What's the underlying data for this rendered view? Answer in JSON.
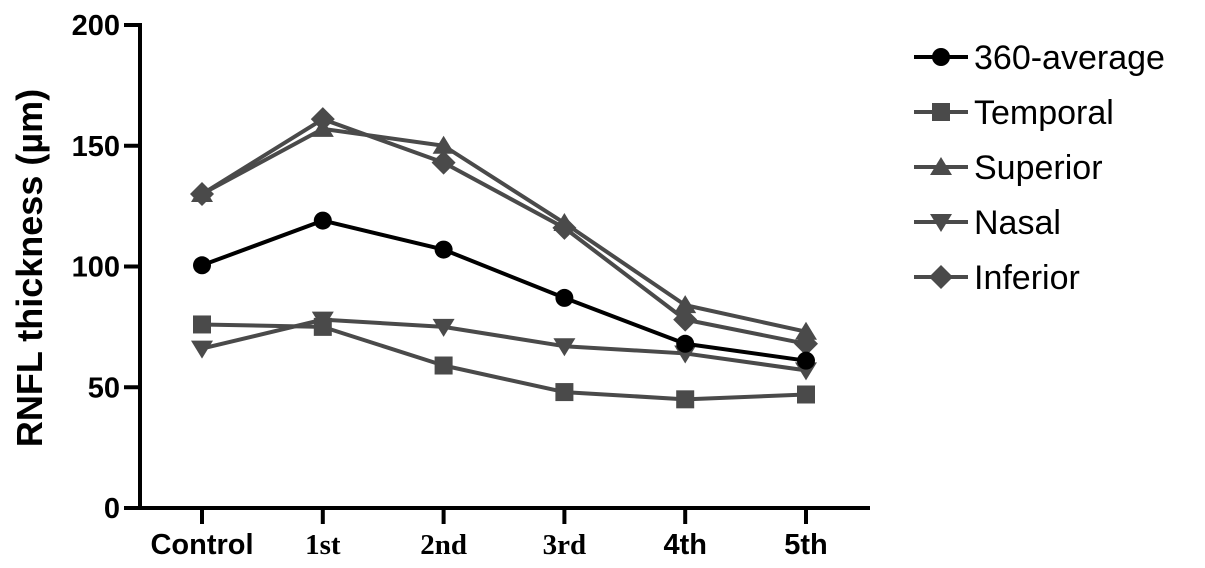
{
  "chart_data": {
    "type": "line",
    "title": "",
    "xlabel": "",
    "ylabel": "RNFL thickness (µm)",
    "categories": [
      "Control",
      "1st",
      "2nd",
      "3rd",
      "4th",
      "5th"
    ],
    "y_ticks": [
      0,
      50,
      100,
      150,
      200
    ],
    "ylim": [
      0,
      200
    ],
    "grid": false,
    "legend_position": "right",
    "series": [
      {
        "name": "360-average",
        "marker": "circle",
        "color": "#000000",
        "values": [
          100.5,
          119,
          107,
          87,
          68,
          61
        ]
      },
      {
        "name": "Temporal",
        "marker": "square",
        "color": "#4a4a4a",
        "values": [
          76,
          75,
          59,
          48,
          45,
          47
        ]
      },
      {
        "name": "Superior",
        "marker": "triangle-up",
        "color": "#4a4a4a",
        "values": [
          130,
          157,
          150,
          118,
          84,
          73
        ]
      },
      {
        "name": "Nasal",
        "marker": "triangle-down",
        "color": "#4a4a4a",
        "values": [
          66,
          78,
          75,
          67,
          64,
          57
        ]
      },
      {
        "name": "Inferior",
        "marker": "diamond",
        "color": "#4a4a4a",
        "values": [
          130,
          161,
          143,
          116,
          78,
          68
        ]
      }
    ]
  }
}
